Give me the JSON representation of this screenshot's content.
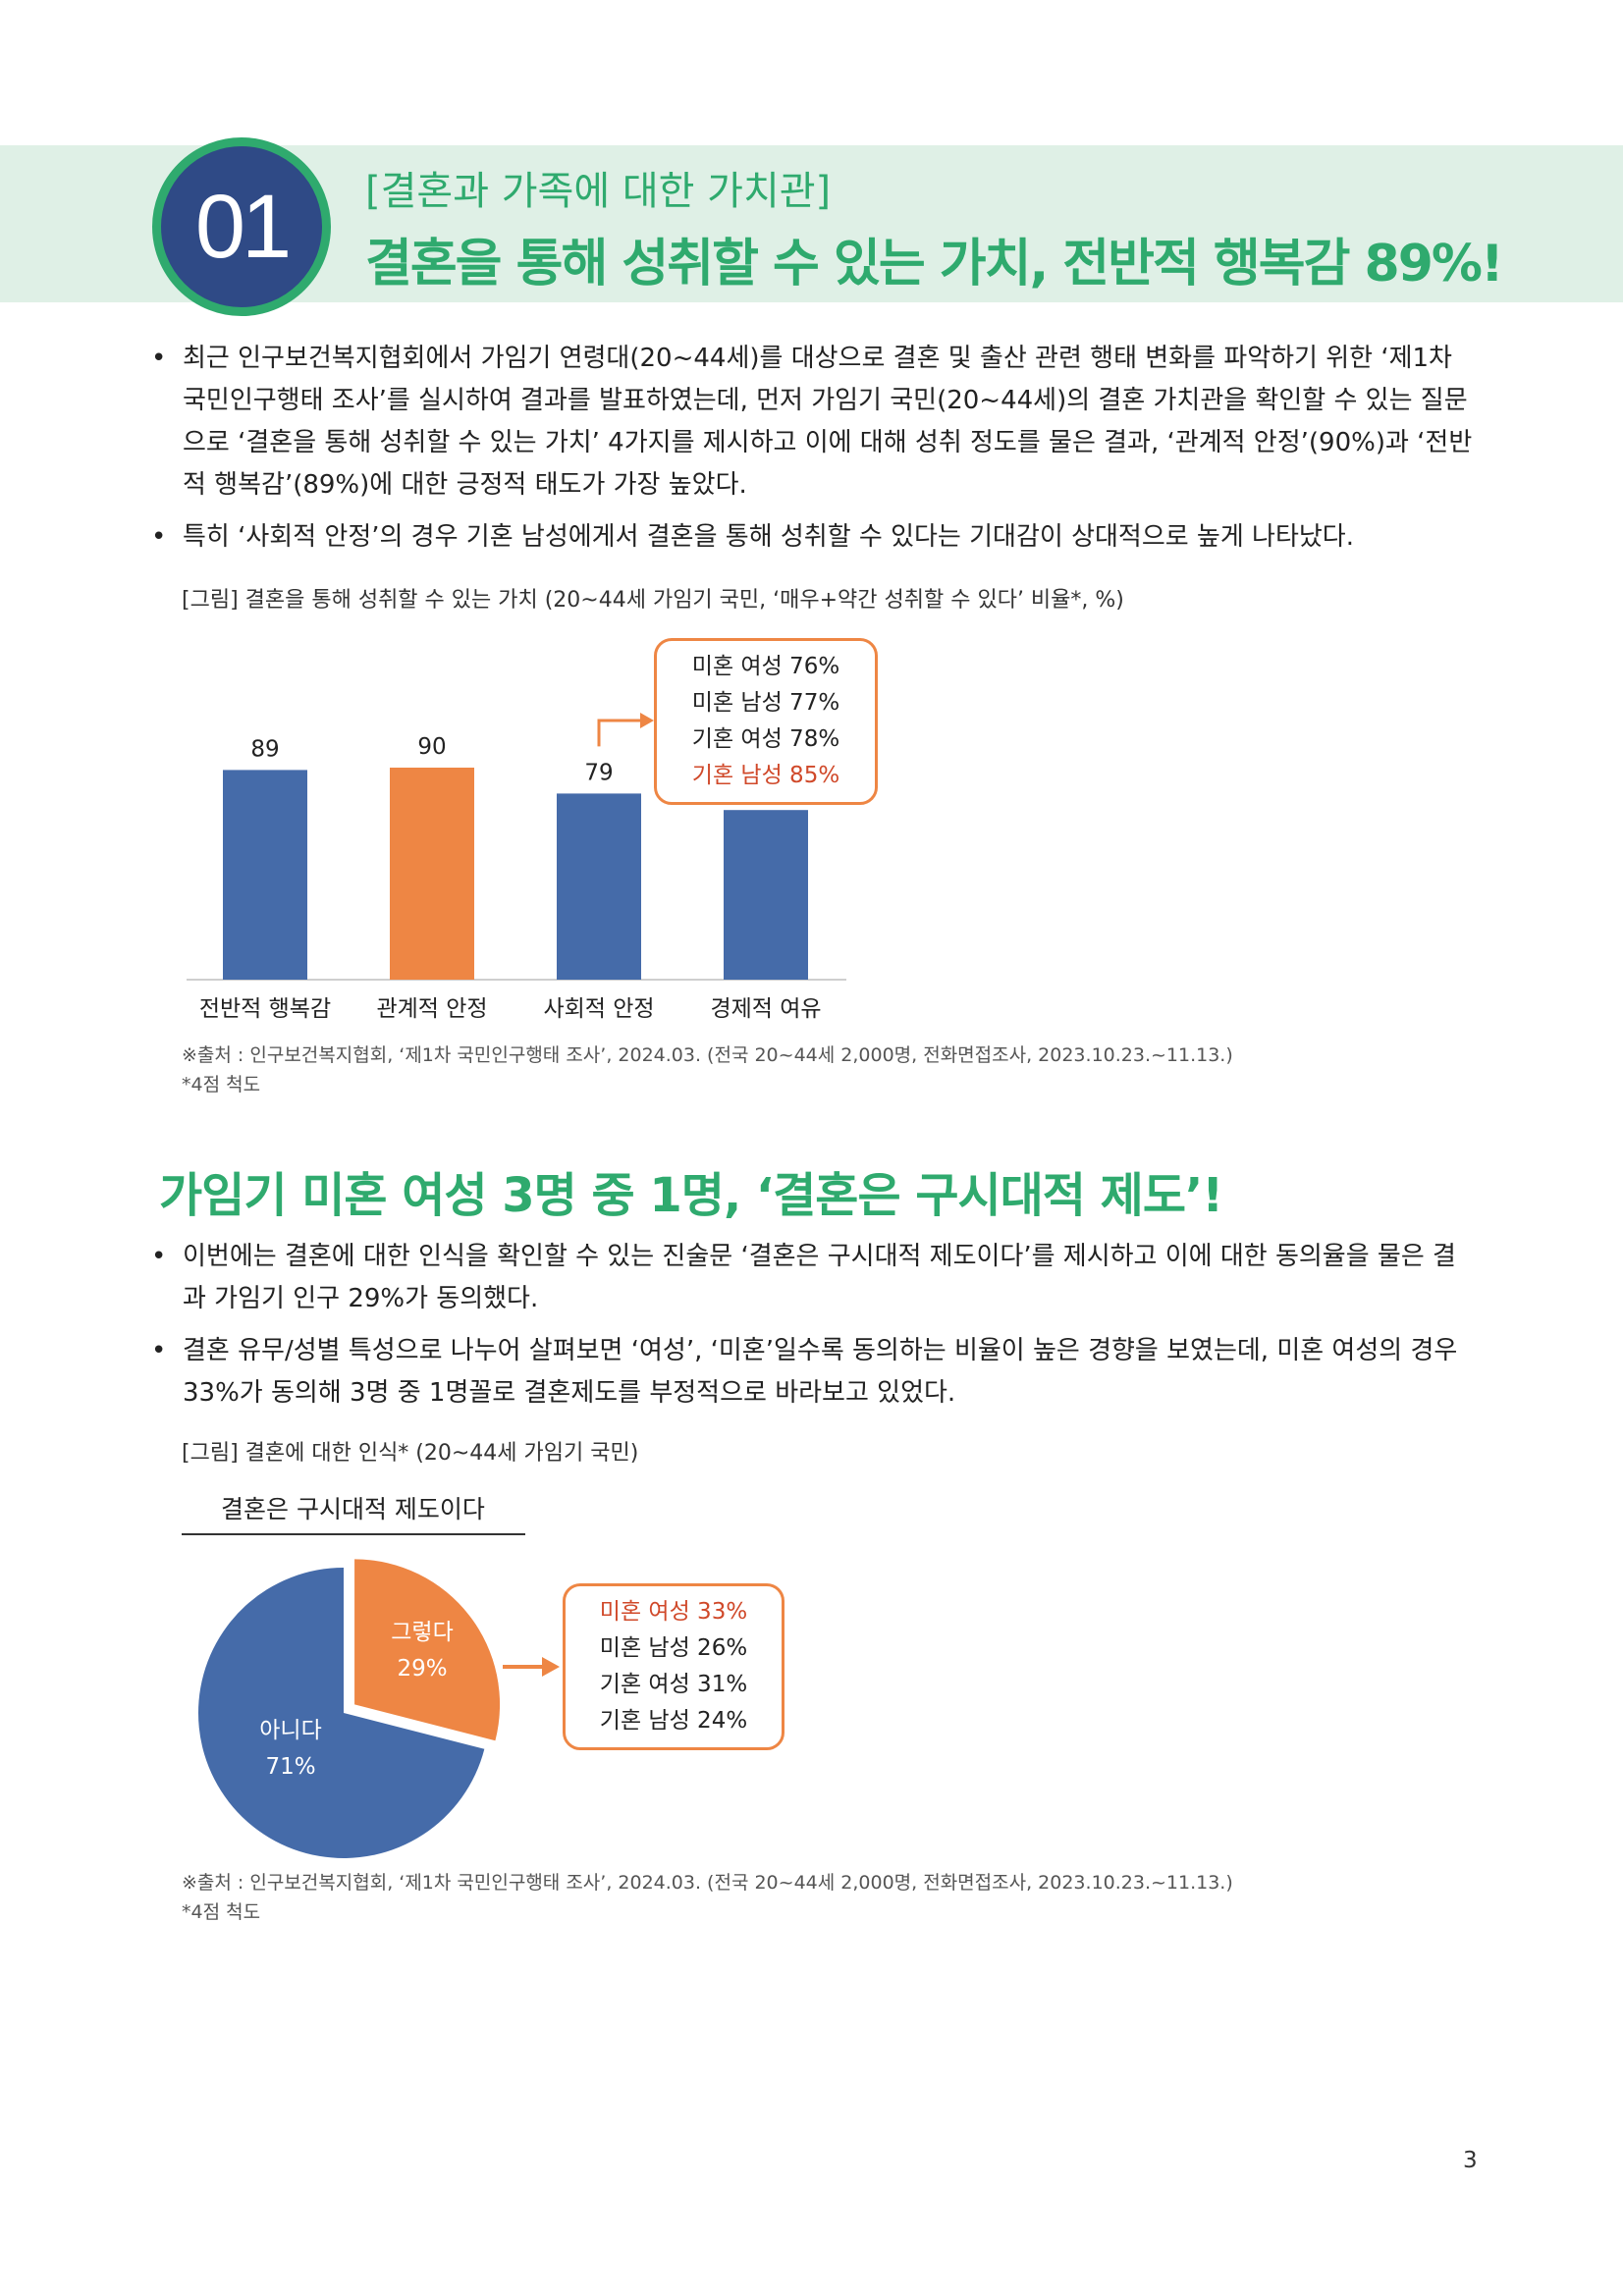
{
  "header": {
    "number": "01",
    "subtitle": "[결혼과 가족에 대한 가치관]",
    "title": "결혼을 통해 성취할 수 있는 가치, 전반적 행복감 89%!"
  },
  "section1": {
    "bullets": [
      "최근 인구보건복지협회에서 가임기 연령대(20~44세)를 대상으로 결혼 및 출산 관련 행태 변화를 파악하기 위한 ‘제1차 국민인구행태 조사’를 실시하여 결과를 발표하였는데, 먼저 가임기 국민(20~44세)의 결혼 가치관을 확인할 수 있는 질문으로 ‘결혼을 통해 성취할 수 있는 가치’ 4가지를 제시하고 이에 대해 성취 정도를 물은 결과, ‘관계적 안정’(90%)과 ‘전반적 행복감’(89%)에 대한 긍정적 태도가 가장 높았다.",
      "특히 ‘사회적 안정’의 경우 기혼 남성에게서 결혼을 통해 성취할 수 있다는 기대감이 상대적으로 높게 나타났다."
    ],
    "figure_caption": "[그림] 결혼을 통해 성취할 수 있는 가치 (20~44세 가임기 국민, ‘매우+약간 성취할 수 있다’ 비율*, %)",
    "callout": [
      "미혼 여성 76%",
      "미혼 남성 77%",
      "기혼 여성 78%",
      "기혼 남성 85%"
    ],
    "source": "※출처 : 인구보건복지협회, ‘제1차 국민인구행태 조사’, 2024.03. (전국 20~44세 2,000명, 전화면접조사, 2023.10.23.~11.13.)",
    "note": "*4점 척도"
  },
  "section2": {
    "heading": "가임기 미혼 여성 3명 중 1명, ‘결혼은 구시대적 제도’!",
    "bullets": [
      "이번에는 결혼에 대한 인식을 확인할 수 있는 진술문 ‘결혼은 구시대적 제도이다’를 제시하고 이에 대한 동의율을 물은 결과 가임기 인구 29%가 동의했다.",
      "결혼 유무/성별 특성으로 나누어 살펴보면 ‘여성’, ‘미혼’일수록 동의하는 비율이 높은 경향을 보였는데, 미혼 여성의 경우 33%가 동의해 3명 중 1명꼴로 결혼제도를 부정적으로 바라보고 있었다."
    ],
    "figure_caption": "[그림] 결혼에 대한 인식* (20~44세 가임기 국민)",
    "pie_title": "결혼은 구시대적 제도이다",
    "callout": [
      "미혼 여성 33%",
      "미혼 남성 26%",
      "기혼 여성 31%",
      "기혼 남성 24%"
    ],
    "source": "※출처 : 인구보건복지협회, ‘제1차 국민인구행태 조사’, 2024.03. (전국 20~44세 2,000명, 전화면접조사, 2023.10.23.~11.13.)",
    "note": "*4점 척도"
  },
  "page_number": "3",
  "colors": {
    "green": "#2faa6e",
    "navy": "#2f4a86",
    "blue_bar": "#456ba9",
    "orange": "#ee8644",
    "red_text": "#d0492a"
  },
  "chart_data": [
    {
      "type": "bar",
      "categories": [
        "전반적 행복감",
        "관계적 안정",
        "사회적 안정",
        "경제적 여유"
      ],
      "values": [
        89,
        90,
        79,
        72
      ],
      "highlight_index": 1,
      "ylim": [
        0,
        100
      ]
    },
    {
      "type": "pie",
      "slices": [
        {
          "label": "그렇다",
          "value": 29,
          "display": "29%"
        },
        {
          "label": "아니다",
          "value": 71,
          "display": "71%"
        }
      ]
    }
  ]
}
